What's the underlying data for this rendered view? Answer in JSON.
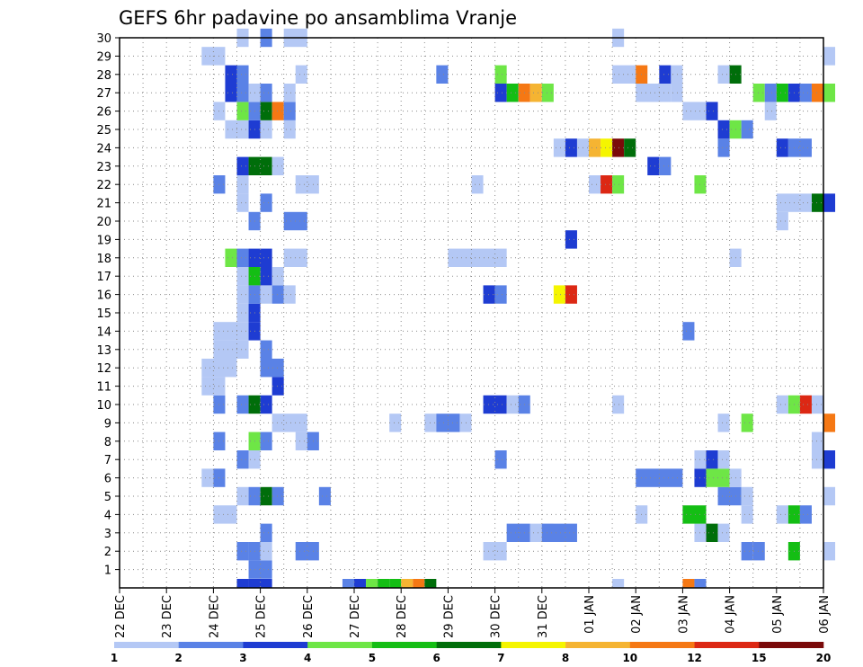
{
  "chart_data": {
    "type": "heatmap",
    "title": "GEFS 6hr padavine po ansamblima Vranje",
    "x_tick_labels": [
      "22 DEC",
      "23 DEC",
      "24 DEC",
      "25 DEC",
      "26 DEC",
      "27 DEC",
      "28 DEC",
      "29 DEC",
      "30 DEC",
      "31 DEC",
      "01 JAN",
      "02 JAN",
      "03 JAN",
      "04 JAN",
      "05 JAN",
      "06 JAN"
    ],
    "y_tick_labels": [
      "1",
      "2",
      "3",
      "4",
      "5",
      "6",
      "7",
      "8",
      "9",
      "10",
      "11",
      "12",
      "13",
      "14",
      "15",
      "16",
      "17",
      "18",
      "19",
      "20",
      "21",
      "22",
      "23",
      "24",
      "25",
      "26",
      "27",
      "28",
      "29",
      "30"
    ],
    "grid": true,
    "legend_placement": "bottom",
    "colorbar": {
      "labels": [
        "1",
        "2",
        "3",
        "4",
        "5",
        "6",
        "7",
        "8",
        "10",
        "12",
        "15",
        "20"
      ],
      "colors": [
        "#b4c8f5",
        "#5a82e6",
        "#1e3cd2",
        "#6ee646",
        "#14be14",
        "#006e0a",
        "#f5f500",
        "#f5b432",
        "#f57814",
        "#dc2814",
        "#7a0a0a"
      ]
    },
    "members": [
      {
        "y": 0,
        "cells": [
          [
            10,
            1,
            3
          ],
          [
            11,
            2,
            3
          ],
          [
            19,
            1,
            2
          ],
          [
            20,
            1,
            3
          ],
          [
            21,
            1,
            4
          ],
          [
            22,
            1,
            5
          ],
          [
            23,
            1,
            5
          ],
          [
            24,
            1,
            8
          ],
          [
            25,
            1,
            9
          ],
          [
            26,
            1,
            6
          ],
          [
            42,
            1,
            1
          ],
          [
            48,
            1,
            9
          ],
          [
            49,
            1,
            2
          ]
        ]
      },
      {
        "y": 1,
        "cells": [
          [
            11,
            2,
            2
          ]
        ]
      },
      {
        "y": 2,
        "cells": [
          [
            10,
            1,
            2
          ],
          [
            11,
            1,
            2
          ],
          [
            12,
            1,
            1
          ],
          [
            15,
            2,
            2
          ],
          [
            31,
            2,
            1
          ],
          [
            53,
            1,
            2
          ],
          [
            54,
            1,
            2
          ],
          [
            57,
            1,
            5
          ],
          [
            60,
            1,
            1
          ]
        ]
      },
      {
        "y": 3,
        "cells": [
          [
            12,
            1,
            2
          ],
          [
            33,
            2,
            2
          ],
          [
            35,
            2,
            1
          ],
          [
            36,
            3,
            2
          ],
          [
            49,
            1,
            1
          ],
          [
            50,
            1,
            6
          ],
          [
            51,
            1,
            1
          ]
        ]
      },
      {
        "y": 4,
        "cells": [
          [
            8,
            2,
            1
          ],
          [
            44,
            1,
            1
          ],
          [
            48,
            2,
            5
          ],
          [
            53,
            1,
            1
          ],
          [
            56,
            1,
            1
          ],
          [
            57,
            1,
            5
          ],
          [
            58,
            1,
            2
          ]
        ]
      },
      {
        "y": 5,
        "cells": [
          [
            10,
            1,
            1
          ],
          [
            11,
            1,
            2
          ],
          [
            12,
            1,
            6
          ],
          [
            13,
            1,
            2
          ],
          [
            17,
            1,
            2
          ],
          [
            51,
            2,
            2
          ],
          [
            53,
            1,
            1
          ],
          [
            60,
            1,
            1
          ]
        ]
      },
      {
        "y": 6,
        "cells": [
          [
            7,
            1,
            1
          ],
          [
            8,
            1,
            2
          ],
          [
            44,
            4,
            2
          ],
          [
            49,
            1,
            3
          ],
          [
            50,
            2,
            4
          ],
          [
            52,
            1,
            1
          ]
        ]
      },
      {
        "y": 7,
        "cells": [
          [
            10,
            1,
            2
          ],
          [
            11,
            1,
            1
          ],
          [
            32,
            1,
            2
          ],
          [
            49,
            1,
            1
          ],
          [
            50,
            1,
            3
          ],
          [
            51,
            1,
            1
          ],
          [
            59,
            1,
            1
          ],
          [
            60,
            1,
            3
          ]
        ]
      },
      {
        "y": 8,
        "cells": [
          [
            8,
            1,
            2
          ],
          [
            11,
            1,
            4
          ],
          [
            12,
            1,
            2
          ],
          [
            15,
            1,
            1
          ],
          [
            16,
            1,
            2
          ],
          [
            59,
            1,
            1
          ]
        ]
      },
      {
        "y": 9,
        "cells": [
          [
            13,
            3,
            1
          ],
          [
            23,
            1,
            1
          ],
          [
            26,
            1,
            1
          ],
          [
            27,
            2,
            2
          ],
          [
            29,
            1,
            1
          ],
          [
            51,
            1,
            1
          ],
          [
            53,
            1,
            4
          ],
          [
            60,
            1,
            9
          ]
        ]
      },
      {
        "y": 10,
        "cells": [
          [
            8,
            1,
            2
          ],
          [
            10,
            1,
            2
          ],
          [
            11,
            1,
            6
          ],
          [
            12,
            1,
            3
          ],
          [
            31,
            2,
            3
          ],
          [
            33,
            1,
            1
          ],
          [
            34,
            1,
            2
          ],
          [
            42,
            1,
            1
          ],
          [
            56,
            1,
            1
          ],
          [
            57,
            1,
            4
          ],
          [
            58,
            1,
            10
          ],
          [
            59,
            1,
            1
          ]
        ]
      },
      {
        "y": 11,
        "cells": [
          [
            7,
            2,
            1
          ],
          [
            13,
            1,
            3
          ]
        ]
      },
      {
        "y": 12,
        "cells": [
          [
            7,
            3,
            1
          ],
          [
            12,
            2,
            2
          ]
        ]
      },
      {
        "y": 13,
        "cells": [
          [
            8,
            3,
            1
          ],
          [
            12,
            1,
            2
          ]
        ]
      },
      {
        "y": 14,
        "cells": [
          [
            8,
            3,
            1
          ],
          [
            11,
            1,
            3
          ],
          [
            48,
            1,
            2
          ]
        ]
      },
      {
        "y": 15,
        "cells": [
          [
            10,
            1,
            1
          ],
          [
            11,
            1,
            3
          ]
        ]
      },
      {
        "y": 16,
        "cells": [
          [
            10,
            1,
            1
          ],
          [
            11,
            1,
            2
          ],
          [
            12,
            1,
            1
          ],
          [
            13,
            1,
            2
          ],
          [
            14,
            1,
            1
          ],
          [
            31,
            1,
            3
          ],
          [
            32,
            1,
            2
          ],
          [
            37,
            1,
            7
          ],
          [
            38,
            1,
            10
          ]
        ]
      },
      {
        "y": 17,
        "cells": [
          [
            10,
            1,
            1
          ],
          [
            11,
            1,
            5
          ],
          [
            12,
            1,
            3
          ],
          [
            13,
            1,
            1
          ]
        ]
      },
      {
        "y": 18,
        "cells": [
          [
            9,
            1,
            4
          ],
          [
            10,
            1,
            2
          ],
          [
            11,
            2,
            3
          ],
          [
            14,
            2,
            1
          ],
          [
            28,
            5,
            1
          ],
          [
            52,
            1,
            1
          ]
        ]
      },
      {
        "y": 19,
        "cells": [
          [
            38,
            1,
            3
          ]
        ]
      },
      {
        "y": 20,
        "cells": [
          [
            11,
            1,
            2
          ],
          [
            14,
            2,
            2
          ],
          [
            56,
            1,
            1
          ]
        ]
      },
      {
        "y": 21,
        "cells": [
          [
            10,
            1,
            1
          ],
          [
            12,
            1,
            2
          ],
          [
            56,
            2,
            1
          ],
          [
            58,
            1,
            1
          ],
          [
            59,
            1,
            6
          ],
          [
            60,
            1,
            3
          ]
        ]
      },
      {
        "y": 22,
        "cells": [
          [
            8,
            1,
            2
          ],
          [
            10,
            1,
            1
          ],
          [
            15,
            2,
            1
          ],
          [
            30,
            1,
            1
          ],
          [
            40,
            1,
            1
          ],
          [
            41,
            1,
            10
          ],
          [
            42,
            1,
            4
          ],
          [
            49,
            1,
            4
          ]
        ]
      },
      {
        "y": 23,
        "cells": [
          [
            10,
            1,
            3
          ],
          [
            11,
            2,
            6
          ],
          [
            13,
            1,
            1
          ],
          [
            45,
            1,
            3
          ],
          [
            46,
            1,
            2
          ]
        ]
      },
      {
        "y": 24,
        "cells": [
          [
            37,
            1,
            1
          ],
          [
            38,
            1,
            3
          ],
          [
            39,
            1,
            1
          ],
          [
            40,
            1,
            8
          ],
          [
            41,
            1,
            7
          ],
          [
            42,
            1,
            11
          ],
          [
            43,
            1,
            6
          ],
          [
            51,
            1,
            2
          ],
          [
            56,
            1,
            3
          ],
          [
            57,
            2,
            2
          ]
        ]
      },
      {
        "y": 25,
        "cells": [
          [
            9,
            2,
            1
          ],
          [
            11,
            1,
            3
          ],
          [
            12,
            1,
            1
          ],
          [
            14,
            1,
            1
          ],
          [
            51,
            1,
            3
          ],
          [
            52,
            1,
            4
          ],
          [
            53,
            1,
            2
          ]
        ]
      },
      {
        "y": 26,
        "cells": [
          [
            8,
            1,
            1
          ],
          [
            10,
            1,
            4
          ],
          [
            11,
            1,
            2
          ],
          [
            12,
            1,
            6
          ],
          [
            13,
            1,
            9
          ],
          [
            14,
            1,
            2
          ],
          [
            48,
            2,
            1
          ],
          [
            50,
            1,
            3
          ],
          [
            55,
            1,
            1
          ]
        ]
      },
      {
        "y": 27,
        "cells": [
          [
            9,
            1,
            3
          ],
          [
            10,
            1,
            2
          ],
          [
            11,
            1,
            1
          ],
          [
            12,
            1,
            2
          ],
          [
            14,
            1,
            1
          ],
          [
            32,
            1,
            3
          ],
          [
            33,
            1,
            5
          ],
          [
            34,
            1,
            9
          ],
          [
            35,
            1,
            8
          ],
          [
            36,
            1,
            4
          ],
          [
            44,
            3,
            1
          ],
          [
            47,
            1,
            1
          ],
          [
            54,
            1,
            4
          ],
          [
            55,
            1,
            2
          ],
          [
            56,
            1,
            5
          ],
          [
            57,
            1,
            3
          ],
          [
            58,
            1,
            2
          ],
          [
            59,
            1,
            9
          ],
          [
            60,
            1,
            4
          ]
        ]
      },
      {
        "y": 28,
        "cells": [
          [
            9,
            1,
            3
          ],
          [
            10,
            1,
            2
          ],
          [
            15,
            1,
            1
          ],
          [
            27,
            1,
            2
          ],
          [
            32,
            1,
            4
          ],
          [
            42,
            2,
            1
          ],
          [
            44,
            1,
            9
          ],
          [
            46,
            1,
            3
          ],
          [
            47,
            1,
            1
          ],
          [
            51,
            1,
            1
          ],
          [
            52,
            1,
            6
          ]
        ]
      },
      {
        "y": 29,
        "cells": [
          [
            7,
            2,
            1
          ],
          [
            60,
            1,
            1
          ]
        ]
      },
      {
        "y": 30,
        "cells": [
          [
            10,
            1,
            1
          ],
          [
            12,
            1,
            2
          ],
          [
            14,
            2,
            1
          ],
          [
            42,
            1,
            1
          ]
        ]
      }
    ]
  }
}
